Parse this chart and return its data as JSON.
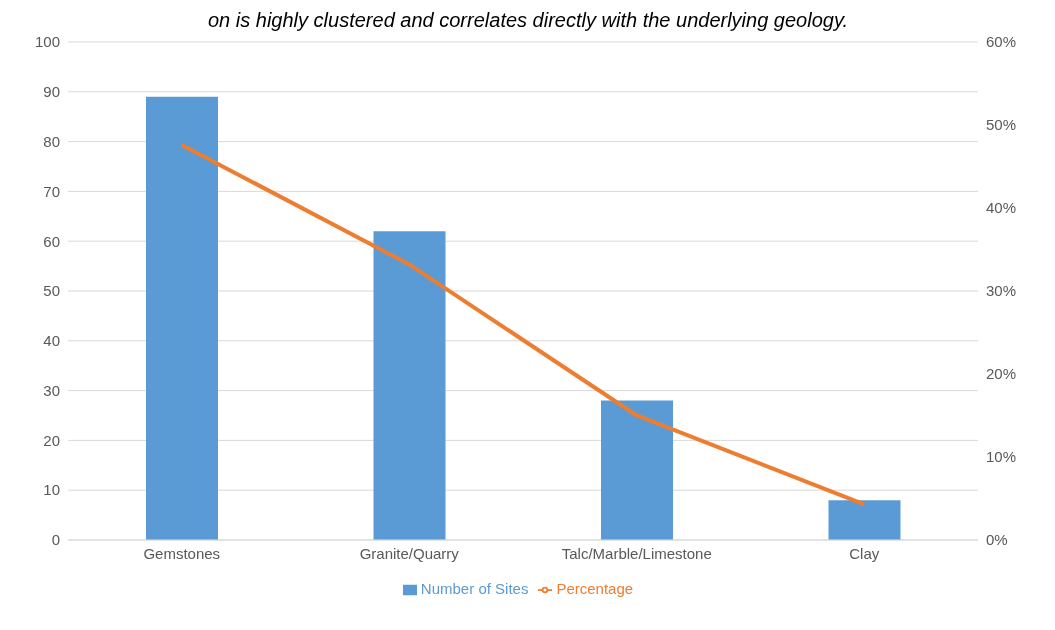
{
  "chart_data": {
    "type": "bar",
    "annotations": [
      "on is highly clustered and correlates directly with the underlying geology."
    ],
    "categories": [
      "Gemstones",
      "Granite/Quarry",
      "Talc/Marble/Limestone",
      "Clay"
    ],
    "series": [
      {
        "name": "Number of Sites",
        "color": "#5b9bd5",
        "values": [
          89,
          62,
          28,
          8
        ]
      },
      {
        "name": "Percentage",
        "type": "line",
        "axis": "y2",
        "color": "#ed7d31",
        "values": [
          47.6,
          33.2,
          15,
          4.3
        ]
      }
    ],
    "ylim": [
      0,
      100
    ],
    "yticks": [
      0,
      10,
      20,
      30,
      40,
      50,
      60,
      70,
      80,
      90,
      100
    ],
    "y2lim": [
      0,
      60
    ],
    "y2ticks": [
      {
        "value": 0,
        "label": "0%"
      },
      {
        "value": 10,
        "label": "10%"
      },
      {
        "value": 20,
        "label": "20%"
      },
      {
        "value": 30,
        "label": "30%"
      },
      {
        "value": 40,
        "label": "40%"
      },
      {
        "value": 50,
        "label": "50%"
      },
      {
        "value": 60,
        "label": "60%"
      }
    ],
    "grid": "y",
    "legend": "bottom",
    "marker": "none",
    "line_style": "solid"
  }
}
